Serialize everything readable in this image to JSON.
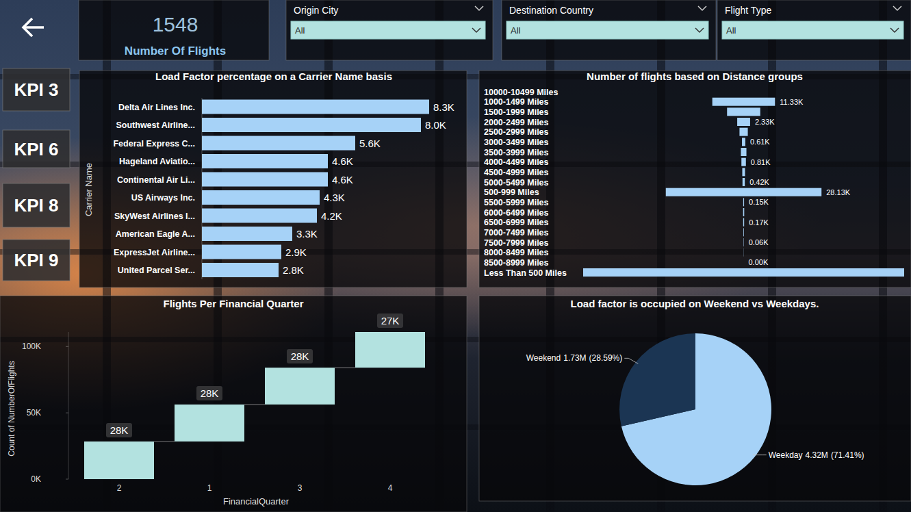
{
  "card": {
    "value": 1548,
    "label": "Number Of Flights"
  },
  "filters": [
    {
      "label": "Origin City",
      "value": "All"
    },
    {
      "label": "Destination Country",
      "value": "All"
    },
    {
      "label": "Flight Type",
      "value": "All"
    }
  ],
  "navigation": [
    "KPI 3",
    "KPI 6",
    "KPI 8",
    "KPI 9"
  ],
  "chart_data": [
    {
      "type": "bar",
      "title": "Load Factor percentage on a Carrier Name basis",
      "ylabel": "Carrier Name",
      "orientation": "horizontal",
      "categories": [
        "Delta Air Lines Inc.",
        "Southwest Airline...",
        "Federal Express C...",
        "Hageland Aviatio...",
        "Continental Air Li...",
        "US Airways Inc.",
        "SkyWest Airlines I...",
        "American Eagle A...",
        "ExpressJet Airline...",
        "United Parcel Ser..."
      ],
      "values": [
        8300,
        8000,
        5600,
        4600,
        4600,
        4300,
        4200,
        3300,
        2900,
        2800
      ],
      "value_labels": [
        "8.3K",
        "8.0K",
        "5.6K",
        "4.6K",
        "4.6K",
        "4.3K",
        "4.2K",
        "3.3K",
        "2.9K",
        "2.8K"
      ],
      "color": "#a6d2f7",
      "xlim": [
        0,
        8300
      ],
      "data_labels": true,
      "tick_labels": "y"
    },
    {
      "type": "funnel",
      "title": "Number of flights based on Distance groups",
      "categories": [
        "10000-10499 Miles",
        "1000-1499 Miles",
        "1500-1999 Miles",
        "2000-2499 Miles",
        "2500-2999 Miles",
        "3000-3499 Miles",
        "3500-3999 Miles",
        "4000-4499 Miles",
        "4500-4999 Miles",
        "5000-5499 Miles",
        "500-999 Miles",
        "5500-5999 Miles",
        "6000-6499 Miles",
        "6500-6999 Miles",
        "7000-7499 Miles",
        "7500-7999 Miles",
        "8000-8499 Miles",
        "8500-8999 Miles",
        "Less Than 500 Miles"
      ],
      "values": [
        0,
        11330,
        6000,
        2330,
        1500,
        610,
        1000,
        810,
        500,
        420,
        28130,
        150,
        200,
        170,
        100,
        60,
        30,
        0,
        58000
      ],
      "value_labels": [
        null,
        "11.33K",
        null,
        "2.33K",
        null,
        "0.61K",
        null,
        "0.81K",
        null,
        "0.42K",
        "28.13K",
        "0.15K",
        null,
        "0.17K",
        null,
        "0.06K",
        null,
        "0.00K",
        null
      ],
      "color": "#a6d2f7",
      "xlim": [
        0,
        58000
      ],
      "data_labels": true,
      "tick_labels": "y"
    },
    {
      "type": "waterfall",
      "title": "Flights Per Financial Quarter",
      "xlabel": "FinancialQuarter",
      "ylabel": "Count of NumberOfFlights",
      "categories": [
        "2",
        "1",
        "3",
        "4"
      ],
      "values": [
        28400,
        27900,
        27800,
        26900
      ],
      "value_labels": [
        "28K",
        "28K",
        "28K",
        "27K"
      ],
      "color": "#b3e2e0",
      "ylim": [
        0,
        111000
      ],
      "yticks": [
        {
          "value": 0,
          "label": "0K"
        },
        {
          "value": 50000,
          "label": "50K"
        },
        {
          "value": 100000,
          "label": "100K"
        }
      ],
      "data_labels": true
    },
    {
      "type": "pie",
      "title": "Load factor is occupied on Weekend vs Weekdays.",
      "categories": [
        "Weekday",
        "Weekend"
      ],
      "values": [
        4320000,
        1730000
      ],
      "value_labels": [
        "4.32M",
        "1.73M"
      ],
      "percentages": [
        71.41,
        28.59
      ],
      "percentage_labels": [
        "71.41%",
        "28.59%"
      ],
      "colors": [
        "#a6d2f7",
        "#1b3553"
      ],
      "data_labels": true
    }
  ]
}
